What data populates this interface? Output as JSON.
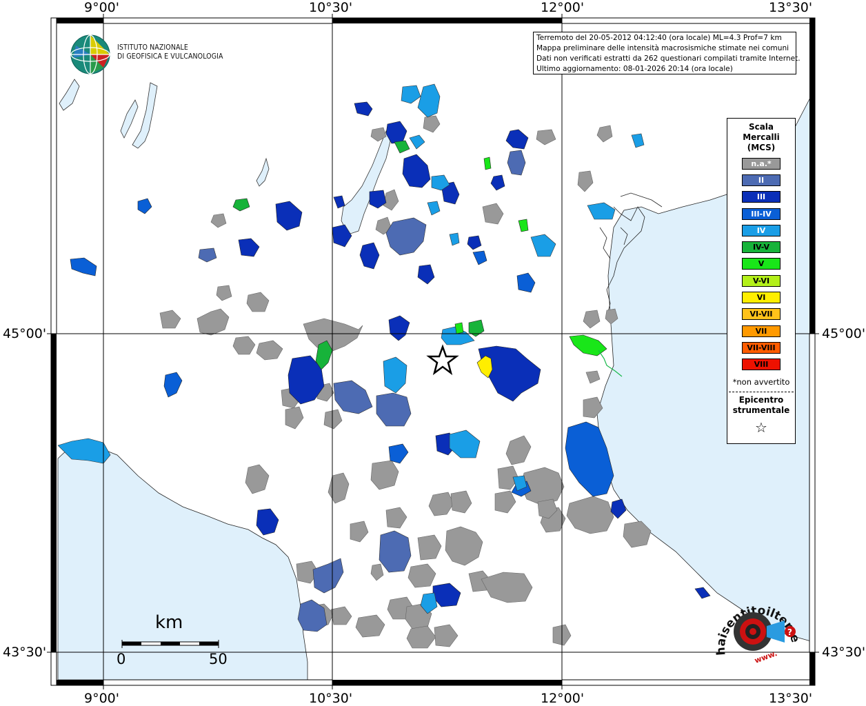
{
  "map": {
    "lon_ticks": [
      "9°00'",
      "10°30'",
      "12°00'",
      "13°30'"
    ],
    "lat_ticks": [
      "45°00'",
      "43°30'"
    ],
    "colors": {
      "sea": "#dff0fb",
      "land": "#ffffff",
      "grid": "#000000"
    }
  },
  "info": {
    "line1": "Terremoto del 20-05-2012 04:12:40 (ora locale) ML=4.3 Prof=7 km",
    "line2": "Mappa preliminare delle intensità macrosismiche stimate nei comuni",
    "line3": "Dati non verificati estratti da 262 questionari compilati tramite Internet.",
    "line4": "Ultimo aggiornamento: 08-01-2026 20:14 (ora locale)"
  },
  "logo": {
    "line1": "ISTITUTO NAZIONALE",
    "line2": "DI GEOFISICA E VULCANOLOGIA"
  },
  "legend": {
    "title1": "Scala",
    "title2": "Mercalli",
    "title3": "(MCS)",
    "classes": [
      {
        "label": "n.a.*",
        "color": "#999999",
        "text": "#ffffff"
      },
      {
        "label": "II",
        "color": "#4d6bb3",
        "text": "#ffffff"
      },
      {
        "label": "III",
        "color": "#0a2fb8",
        "text": "#ffffff"
      },
      {
        "label": "III-IV",
        "color": "#0a5fd6",
        "text": "#ffffff"
      },
      {
        "label": "IV",
        "color": "#1a9ee6",
        "text": "#ffffff"
      },
      {
        "label": "IV-V",
        "color": "#17b33a",
        "text": "#000000"
      },
      {
        "label": "V",
        "color": "#19e619",
        "text": "#000000"
      },
      {
        "label": "V-VI",
        "color": "#b3f019",
        "text": "#000000"
      },
      {
        "label": "VI",
        "color": "#ffee00",
        "text": "#000000"
      },
      {
        "label": "VI-VII",
        "color": "#ffc21a",
        "text": "#000000"
      },
      {
        "label": "VII",
        "color": "#ff9900",
        "text": "#000000"
      },
      {
        "label": "VII-VIII",
        "color": "#ff5c00",
        "text": "#000000"
      },
      {
        "label": "VIII",
        "color": "#ee1100",
        "text": "#000000"
      }
    ],
    "note": "*non avvertito",
    "epi1": "Epicentro",
    "epi2": "strumentale"
  },
  "scale": {
    "unit": "km",
    "zero": "0",
    "fifty": "50"
  },
  "hsit": {
    "text": "haisentitoilterremoto.it",
    "www": "www."
  }
}
